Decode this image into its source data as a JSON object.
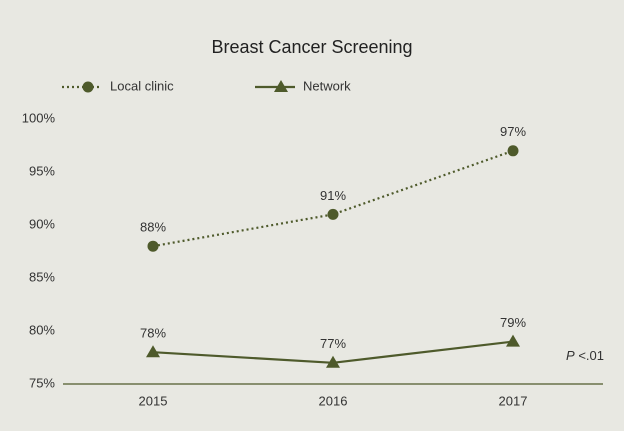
{
  "chart_data": {
    "type": "line",
    "title": "Breast Cancer Screening",
    "categories": [
      "2015",
      "2016",
      "2017"
    ],
    "series": [
      {
        "name": "Local clinic",
        "color": "#4e5a2b",
        "marker": "circle",
        "dash": "dotted",
        "values": [
          88,
          91,
          97
        ],
        "value_labels": [
          "88%",
          "91%",
          "97%"
        ]
      },
      {
        "name": "Network",
        "color": "#4e5a2b",
        "marker": "triangle",
        "dash": "solid",
        "values": [
          78,
          77,
          79
        ],
        "value_labels": [
          "78%",
          "77%",
          "79%"
        ]
      }
    ],
    "ylim": [
      75,
      100
    ],
    "yticks": [
      {
        "value": 75,
        "label": "75%"
      },
      {
        "value": 80,
        "label": "80%"
      },
      {
        "value": 85,
        "label": "85%"
      },
      {
        "value": 90,
        "label": "90%"
      },
      {
        "value": 95,
        "label": "95%"
      },
      {
        "value": 100,
        "label": "100%"
      }
    ],
    "grid": false,
    "legend": "top-left",
    "annotation": "P <.01"
  }
}
